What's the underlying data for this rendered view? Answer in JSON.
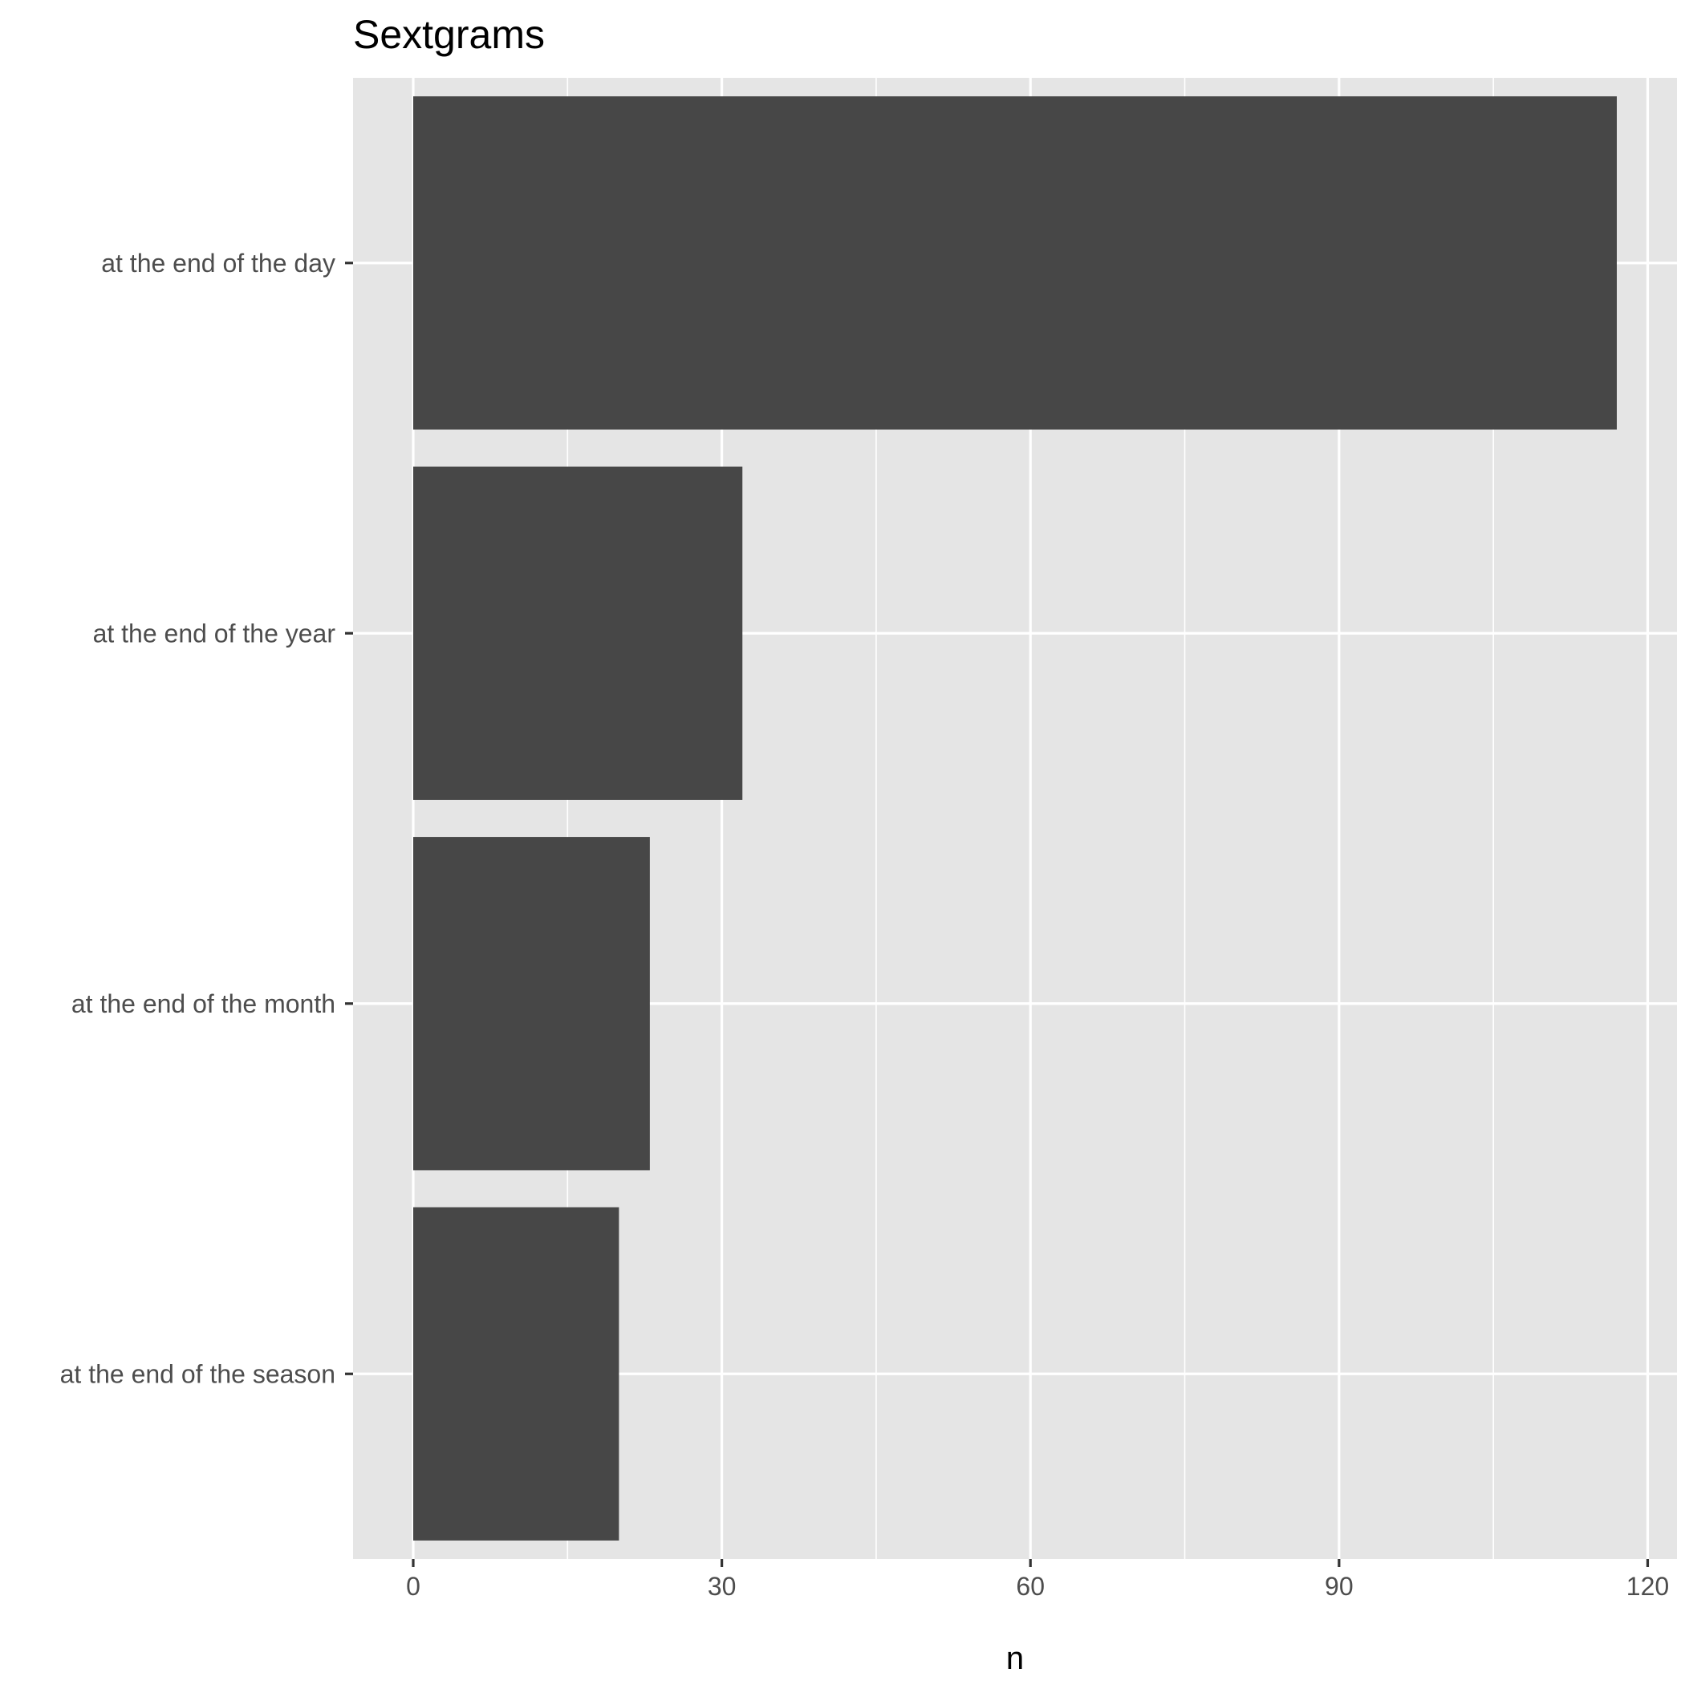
{
  "chart_data": {
    "type": "bar",
    "orientation": "horizontal",
    "title": "Sextgrams",
    "xlabel": "n",
    "ylabel": "",
    "categories": [
      "at the end of the day",
      "at the end of the year",
      "at the end of the month",
      "at the end of the season"
    ],
    "values": [
      117,
      32,
      23,
      20
    ],
    "xlim": [
      -5.85,
      122.85
    ],
    "xticks": [
      0,
      30,
      60,
      90,
      120
    ],
    "grid": true,
    "legend": "none",
    "colors": {
      "panel": "#e5e5e5",
      "grid": "#ffffff",
      "bar": "#474747",
      "tick_text": "#4d4d4d",
      "tick_mark": "#333333"
    }
  }
}
